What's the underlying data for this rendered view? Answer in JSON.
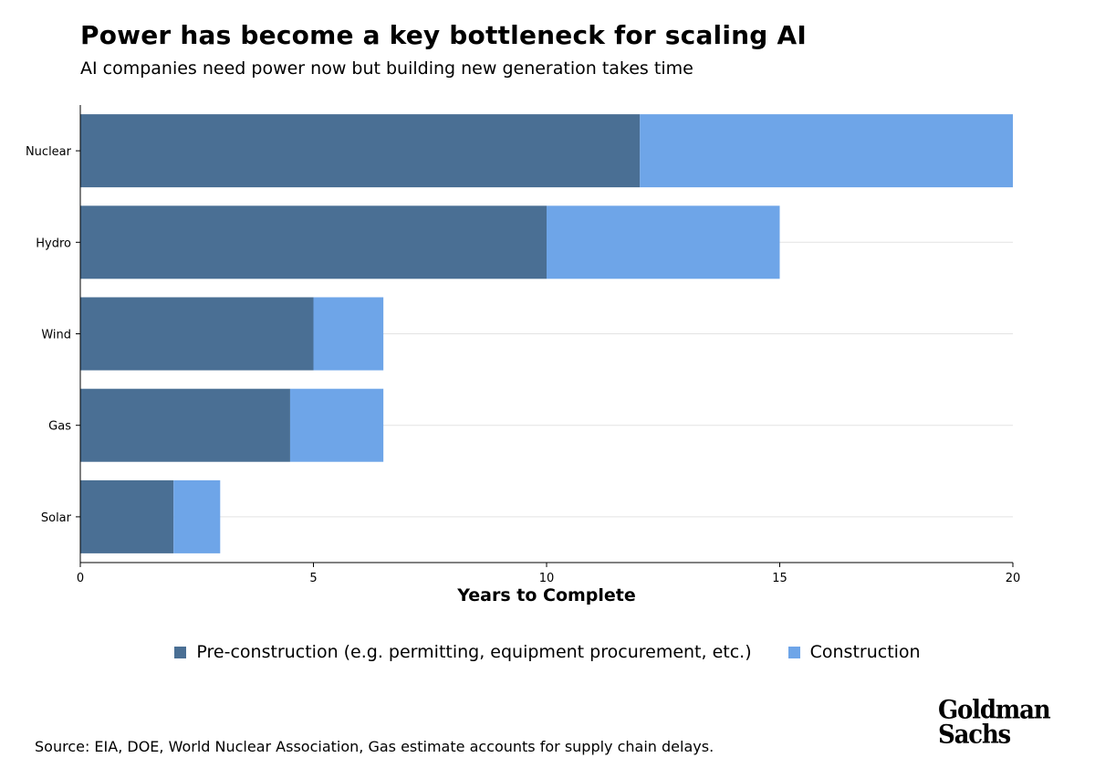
{
  "header": {
    "title": "Power has become a key bottleneck for scaling AI",
    "subtitle": "AI companies need power now but building new generation takes time"
  },
  "chart_data": {
    "type": "bar",
    "orientation": "horizontal",
    "stacked": true,
    "categories": [
      "Nuclear",
      "Hydro",
      "Wind",
      "Gas",
      "Solar"
    ],
    "series": [
      {
        "name": "Pre-construction (e.g. permitting, equipment procurement, etc.)",
        "values": [
          12,
          10,
          5,
          4.5,
          2
        ],
        "color": "#4a6f94"
      },
      {
        "name": "Construction",
        "values": [
          8,
          5,
          1.5,
          2,
          1
        ],
        "color": "#6ea5e8"
      }
    ],
    "xlabel": "Years to Complete",
    "ylabel": "",
    "xlim": [
      0,
      20
    ],
    "xticks": [
      0,
      5,
      10,
      15,
      20
    ],
    "grid": "horizontal",
    "legend_position": "bottom"
  },
  "source": "Source: EIA, DOE, World Nuclear Association, Gas estimate accounts for supply chain delays.",
  "logo": {
    "line1": "Goldman",
    "line2": "Sachs"
  },
  "colors": {
    "pre_construction": "#4a6f94",
    "construction": "#6ea5e8",
    "grid": "#e3e3e3",
    "axis": "#000000"
  }
}
